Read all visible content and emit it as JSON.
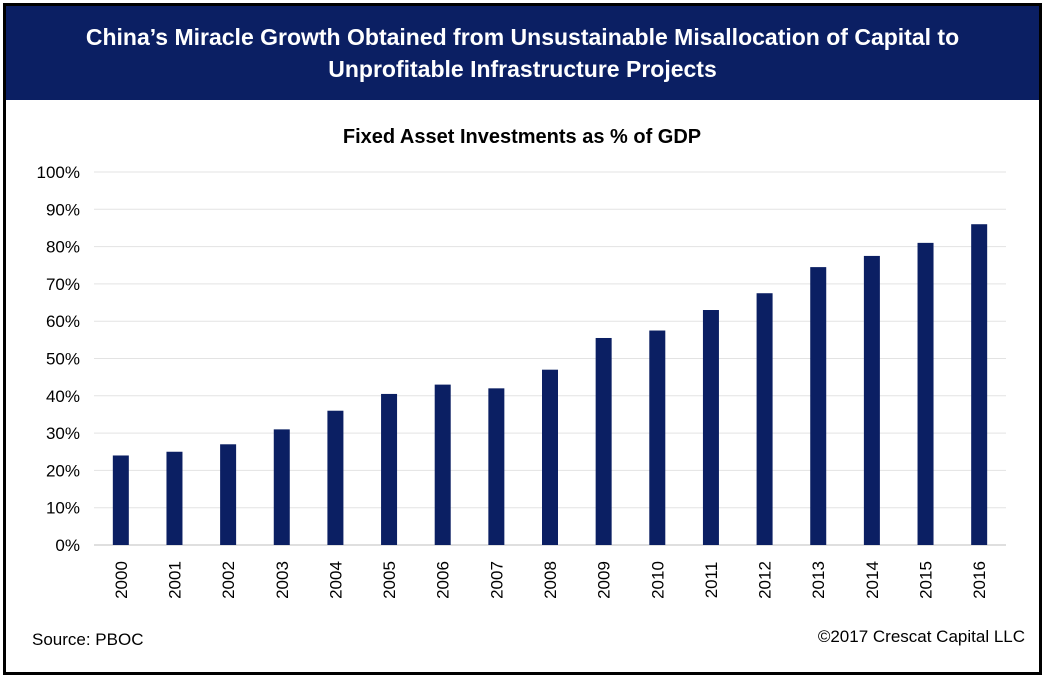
{
  "header": {
    "title_line1": "China’s Miracle Growth Obtained from Unsustainable Misallocation of Capital to",
    "title_line2": "Unprofitable Infrastructure Projects",
    "background_color": "#0b1f63"
  },
  "chart_data": {
    "type": "bar",
    "title": "Fixed Asset Investments as % of GDP",
    "xlabel": "",
    "ylabel": "",
    "categories": [
      "2000",
      "2001",
      "2002",
      "2003",
      "2004",
      "2005",
      "2006",
      "2007",
      "2008",
      "2009",
      "2010",
      "2011",
      "2012",
      "2013",
      "2014",
      "2015",
      "2016"
    ],
    "values": [
      24,
      25,
      27,
      31,
      36,
      40.5,
      43,
      42,
      47,
      55.5,
      57.5,
      63,
      67.5,
      74.5,
      77.5,
      81,
      86
    ],
    "ylim": [
      0,
      100
    ],
    "yticks": [
      "0%",
      "10%",
      "20%",
      "30%",
      "40%",
      "50%",
      "60%",
      "70%",
      "80%",
      "90%",
      "100%"
    ],
    "grid": true,
    "bar_color": "#0b1f63"
  },
  "footer": {
    "source": "Source: PBOC",
    "copyright": "©2017 Crescat Capital LLC"
  }
}
